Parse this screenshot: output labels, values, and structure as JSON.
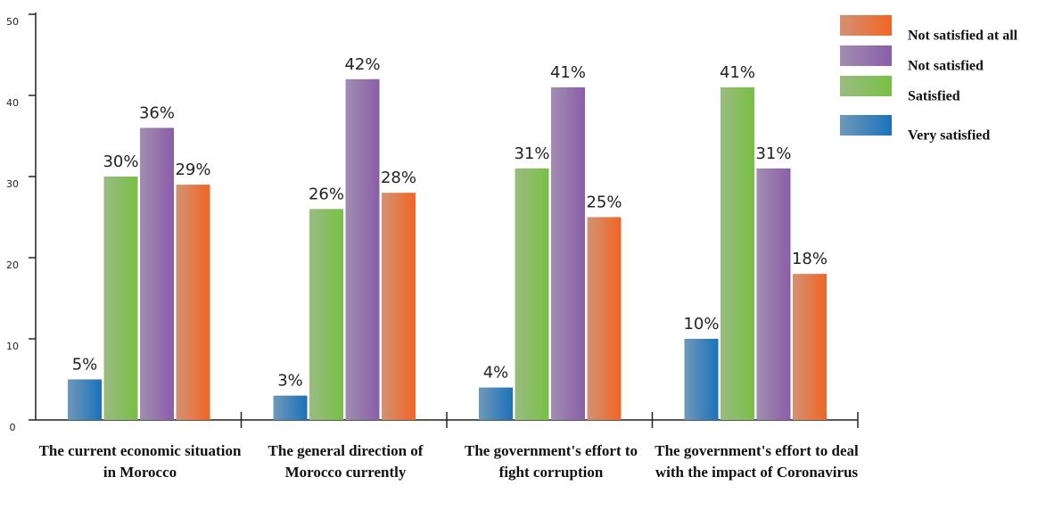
{
  "chart_data": {
    "type": "bar",
    "categories": [
      "The current economic situation in Morocco",
      "The general direction of Morocco currently",
      "The government's effort to fight corruption",
      "The government's effort to deal with the impact of Coronavirus"
    ],
    "series": [
      {
        "name": "Very satisfied",
        "color": "#1a72bb",
        "values": [
          5,
          3,
          4,
          10
        ],
        "value_labels": [
          "5%",
          "3%",
          "4%",
          "10%"
        ]
      },
      {
        "name": "Satisfied",
        "color": "#78c043",
        "values": [
          30,
          26,
          31,
          41
        ],
        "value_labels": [
          "30%",
          "26%",
          "31%",
          "41%"
        ]
      },
      {
        "name": "Not satisfied",
        "color": "#8a5da9",
        "values": [
          36,
          42,
          41,
          31
        ],
        "value_labels": [
          "36%",
          "42%",
          "41%",
          "31%"
        ]
      },
      {
        "name": "Not satisfied at all",
        "color": "#f26522",
        "values": [
          29,
          28,
          25,
          18
        ],
        "value_labels": [
          "29%",
          "28%",
          "25%",
          "18%"
        ]
      }
    ],
    "ylim": [
      0,
      50
    ],
    "yticks": [
      0,
      10,
      20,
      30,
      40,
      50
    ],
    "grid": false
  }
}
